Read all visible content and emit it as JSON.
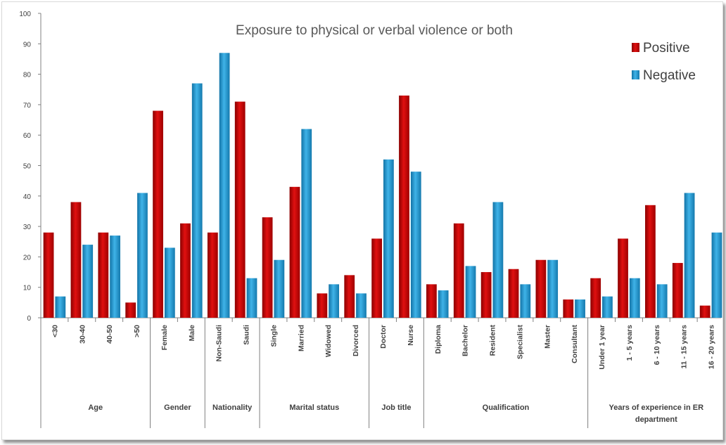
{
  "chart_data": {
    "type": "bar",
    "title": "Exposure to physical or verbal violence or both",
    "ylim": [
      0,
      100
    ],
    "yticks": [
      0,
      10,
      20,
      30,
      40,
      50,
      60,
      70,
      80,
      90,
      100
    ],
    "legend_position": "top-right",
    "grid": false,
    "categories": [
      "<30",
      "30-40",
      "40-50",
      ">50",
      "Female",
      "Male",
      "Non-Saudi",
      "Saudi",
      "Single",
      "Married",
      "Widowed",
      "Divorced",
      "Doctor",
      "Nurse",
      "Diploma",
      "Bachelor",
      "Resident",
      "Specialist",
      "Master",
      "Consultant",
      "Under 1 year",
      "1 - 5 years",
      "6 - 10  years",
      "11 - 15 years",
      "16 - 20 years"
    ],
    "groups": [
      {
        "label": "Age",
        "start": 0,
        "count": 4
      },
      {
        "label": "Gender",
        "start": 4,
        "count": 2
      },
      {
        "label": "Nationality",
        "start": 6,
        "count": 2
      },
      {
        "label": "Marital status",
        "start": 8,
        "count": 4
      },
      {
        "label": "Job title",
        "start": 12,
        "count": 2
      },
      {
        "label": "Qualification",
        "start": 14,
        "count": 6
      },
      {
        "label": "Years of experience in ER department",
        "start": 20,
        "count": 5
      }
    ],
    "series": [
      {
        "name": "Positive",
        "color": "#c00000",
        "values": [
          28,
          38,
          28,
          5,
          68,
          31,
          28,
          71,
          33,
          43,
          8,
          14,
          26,
          73,
          11,
          31,
          15,
          16,
          19,
          6,
          13,
          26,
          37,
          18,
          4
        ]
      },
      {
        "name": "Negative",
        "color": "#1e8fc7",
        "values": [
          7,
          24,
          27,
          41,
          23,
          77,
          87,
          13,
          19,
          62,
          11,
          8,
          52,
          48,
          9,
          17,
          38,
          11,
          19,
          6,
          7,
          13,
          11,
          41,
          28
        ]
      }
    ]
  }
}
